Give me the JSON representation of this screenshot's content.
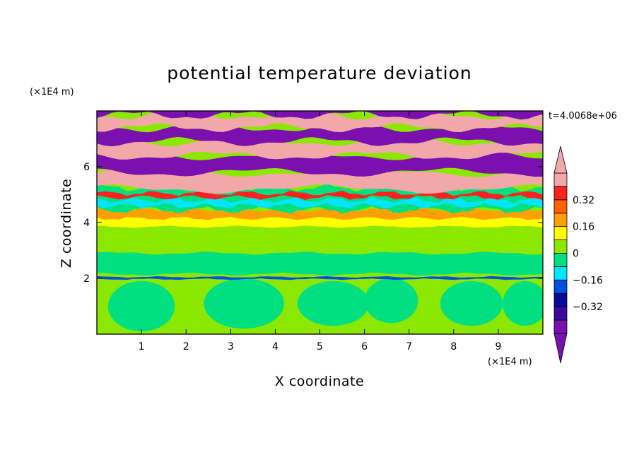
{
  "chart_data": {
    "type": "heatmap",
    "title": "potential temperature deviation",
    "time_label": "t=4.0068e+06",
    "x_axis": {
      "label": "X coordinate",
      "unit": "(×1E4 m)",
      "range": [
        0,
        10
      ],
      "ticks": [
        1,
        2,
        3,
        4,
        5,
        6,
        7,
        8,
        9
      ],
      "tick_labels": [
        "1",
        "2",
        "3",
        "4",
        "5",
        "6",
        "7",
        "8",
        "9"
      ]
    },
    "y_axis": {
      "label": "Z coordinate",
      "unit": "(×1E4 m)",
      "range": [
        0,
        8
      ],
      "ticks": [
        2,
        4,
        6
      ],
      "tick_labels": [
        "2",
        "4",
        "6"
      ]
    },
    "colorbar": {
      "levels": [
        -0.48,
        -0.4,
        -0.32,
        -0.24,
        -0.16,
        -0.08,
        0,
        0.08,
        0.16,
        0.24,
        0.32,
        0.4,
        0.48
      ],
      "colors": [
        "#7a10ad",
        "#3a0aa0",
        "#0a0a9a",
        "#0050e0",
        "#00e6ff",
        "#00e080",
        "#8ce800",
        "#ffff00",
        "#ffa000",
        "#ff6000",
        "#ff2020",
        "#f2a8a8"
      ],
      "under_color": "#7a10ad",
      "over_color": "#f2a8a8",
      "tick_values": [
        0.32,
        0.16,
        0,
        -0.16,
        -0.32
      ],
      "tick_labels": [
        "0.32",
        "0.16",
        "0",
        "−0.16",
        "−0.32"
      ]
    },
    "field_bands": [
      {
        "z_range": [
          0,
          2.0
        ],
        "dominant": "0"
      },
      {
        "z_range": [
          2.0,
          3.8
        ],
        "dominant": "0"
      },
      {
        "z_range": [
          3.8,
          4.2
        ],
        "dominant": "0.16"
      },
      {
        "z_range": [
          4.2,
          5.2
        ],
        "dominant": "mixed"
      },
      {
        "z_range": [
          5.2,
          8.0
        ],
        "dominant": "alternating >0.48 / <-0.48"
      }
    ],
    "grid": false
  }
}
